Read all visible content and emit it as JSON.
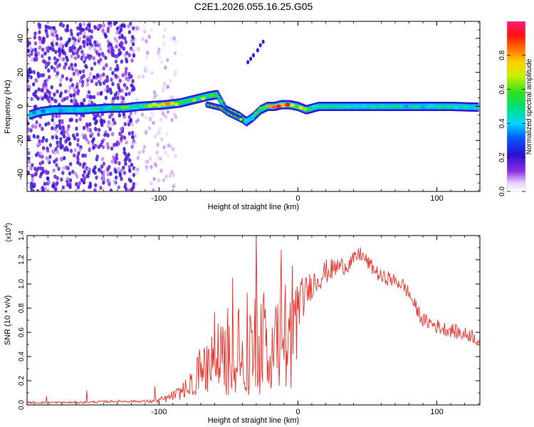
{
  "title": "C2E1.2026.055.16.25.G05",
  "chart_data": [
    {
      "type": "heatmap",
      "title": "C2E1.2026.055.16.25.G05",
      "xlabel": "Height of straight line (km)",
      "ylabel": "Frequency (Hz)",
      "xlim": [
        -195,
        131
      ],
      "ylim": [
        -50,
        50
      ],
      "xticks": [
        -100,
        0,
        100
      ],
      "yticks": [
        -40,
        -20,
        0,
        20,
        40
      ],
      "xtick_labels": [
        "-100",
        "0",
        "100"
      ],
      "ytick_labels": [
        "-40",
        "-20",
        "0",
        "20",
        "40"
      ],
      "colorbar": {
        "label": "Normalized spectral amplitude",
        "range": [
          0.0,
          1.0
        ],
        "ticks": [
          "0.0",
          "0.2",
          "0.4",
          "0.6",
          "0.8"
        ],
        "tick_values": [
          0.0,
          0.2,
          0.4,
          0.6,
          0.8
        ]
      },
      "ridge": {
        "x": [
          -193,
          -185,
          -175,
          -165,
          -155,
          -145,
          -135,
          -125,
          -115,
          -105,
          -95,
          -85,
          -75,
          -65,
          -58,
          -52,
          -47,
          -42,
          -37,
          -32,
          -27,
          -22,
          -17,
          -12,
          -6,
          0,
          6,
          15,
          30,
          50,
          70,
          90,
          110,
          130
        ],
        "y": [
          -5,
          -3,
          -2,
          -2,
          -2,
          -1.5,
          -1,
          -1,
          0,
          0.5,
          1,
          2,
          4,
          6,
          7,
          -2,
          -4,
          -6,
          -9,
          -6,
          -2,
          0,
          0,
          1,
          1,
          0,
          -2,
          0,
          0,
          0,
          0,
          0,
          0,
          -0.5
        ],
        "amplitude": [
          0.5,
          0.4,
          0.4,
          0.45,
          0.5,
          0.5,
          0.55,
          0.6,
          0.6,
          0.75,
          0.95,
          0.6,
          0.7,
          0.6,
          0.55,
          0.6,
          0.7,
          0.55,
          0.45,
          0.5,
          0.6,
          0.9,
          0.95,
          1.0,
          0.9,
          0.8,
          0.6,
          0.5,
          0.5,
          0.5,
          0.5,
          0.5,
          0.5,
          0.5
        ]
      },
      "secondary_ridge": {
        "x": [
          -65,
          -60,
          -55,
          -50,
          -45,
          -40
        ],
        "y": [
          1,
          0,
          -1,
          -4,
          -6,
          -8
        ]
      },
      "satellite_track": {
        "x": [
          -36,
          -34,
          -32,
          -29,
          -27,
          -25
        ],
        "y": [
          26,
          28,
          30,
          33,
          36,
          38
        ]
      },
      "noise_bands_x": [
        -195,
        -190,
        -185,
        -180,
        -175,
        -170,
        -165,
        -160,
        -155,
        -150,
        -145,
        -140,
        -135,
        -130,
        -125,
        -120,
        -115,
        -110,
        -105,
        -100,
        -95,
        -90
      ]
    },
    {
      "type": "line",
      "xlabel": "Height of straight line (km)",
      "ylabel": "SNR (10 * v/v)",
      "y_scale_label": "(x10",
      "y_scale_exponent": "4",
      "y_scale_close": ")",
      "xlim": [
        -195,
        131
      ],
      "ylim": [
        0.0,
        1.4
      ],
      "xticks": [
        -100,
        0,
        100
      ],
      "yticks": [
        0.0,
        0.2,
        0.4,
        0.6,
        0.8,
        1.0,
        1.2,
        1.4
      ],
      "xtick_labels": [
        "-100",
        "0",
        "100"
      ],
      "ytick_labels": [
        "0.0",
        "0.2",
        "0.4",
        "0.6",
        "0.8",
        "1.0",
        "1.2",
        "1.4"
      ],
      "color": "#e8302a",
      "envelope": {
        "x": [
          -195,
          -160,
          -130,
          -105,
          -95,
          -85,
          -75,
          -70,
          -62,
          -55,
          -48,
          -42,
          -36,
          -30,
          -25,
          -20,
          -15,
          -10,
          -5,
          0,
          5,
          10,
          15,
          20,
          25,
          30,
          35,
          40,
          45,
          50,
          55,
          60,
          65,
          70,
          75,
          80,
          85,
          90,
          95,
          100,
          105,
          110,
          115,
          120,
          125,
          131
        ],
        "y": [
          0.02,
          0.02,
          0.03,
          0.03,
          0.05,
          0.1,
          0.2,
          0.35,
          0.45,
          0.5,
          0.5,
          0.55,
          0.5,
          0.55,
          0.6,
          0.65,
          0.7,
          0.72,
          0.75,
          0.85,
          0.9,
          1.0,
          1.05,
          1.1,
          1.12,
          1.15,
          1.15,
          1.2,
          1.25,
          1.18,
          1.12,
          1.05,
          1.05,
          1.02,
          1.0,
          0.92,
          0.8,
          0.7,
          0.68,
          0.65,
          0.63,
          0.62,
          0.6,
          0.58,
          0.58,
          0.52
        ]
      },
      "noise_amplitude": {
        "x": [
          -195,
          -110,
          -90,
          -75,
          -60,
          -50,
          -40,
          -30,
          -20,
          -10,
          0,
          10,
          40,
          80,
          131
        ],
        "y": [
          0.01,
          0.01,
          0.04,
          0.1,
          0.3,
          0.4,
          0.45,
          0.4,
          0.35,
          0.3,
          0.2,
          0.12,
          0.06,
          0.06,
          0.06
        ]
      },
      "spikes": [
        {
          "x": -181,
          "y": 0.07
        },
        {
          "x": -152,
          "y": 0.12
        },
        {
          "x": -103,
          "y": 0.15
        },
        {
          "x": -47,
          "y": 1.05
        },
        {
          "x": -30,
          "y": 1.43
        },
        {
          "x": -12,
          "y": 1.28
        },
        {
          "x": -4,
          "y": 1.15
        },
        {
          "x": 45,
          "y": 1.3
        }
      ]
    }
  ]
}
